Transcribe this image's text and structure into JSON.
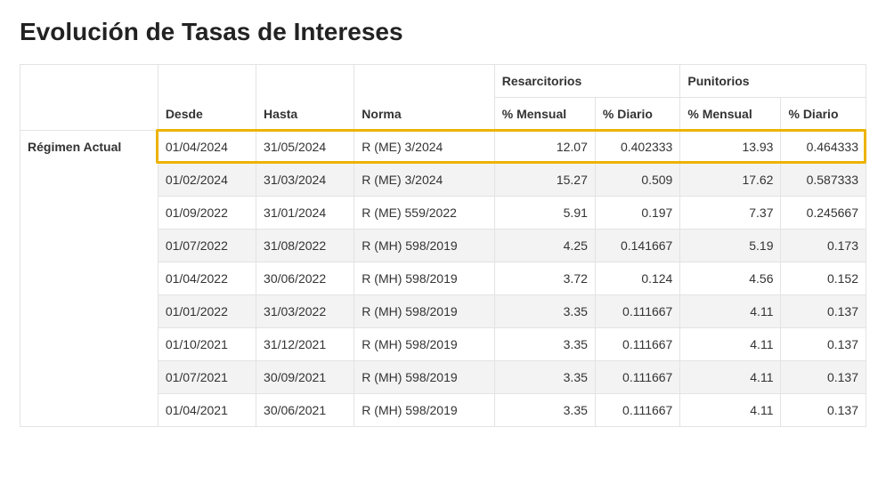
{
  "title": "Evolución de Tasas de Intereses",
  "headers": {
    "desde": "Desde",
    "hasta": "Hasta",
    "norma": "Norma",
    "resarcitorios": "Resarcitorios",
    "punitorios": "Punitorios",
    "pct_mensual": "% Mensual",
    "pct_diario": "% Diario"
  },
  "regimen_label": "Régimen Actual",
  "highlight_row_index": 0,
  "highlight_color": "#edb300",
  "stripe_color": "#f3f3f3",
  "border_color": "#e3e3e3",
  "rows": [
    {
      "desde": "01/04/2024",
      "hasta": "31/05/2024",
      "norma": "R (ME) 3/2024",
      "res_mensual": "12.07",
      "res_diario": "0.402333",
      "pun_mensual": "13.93",
      "pun_diario": "0.464333"
    },
    {
      "desde": "01/02/2024",
      "hasta": "31/03/2024",
      "norma": "R (ME) 3/2024",
      "res_mensual": "15.27",
      "res_diario": "0.509",
      "pun_mensual": "17.62",
      "pun_diario": "0.587333"
    },
    {
      "desde": "01/09/2022",
      "hasta": "31/01/2024",
      "norma": "R (ME) 559/2022",
      "res_mensual": "5.91",
      "res_diario": "0.197",
      "pun_mensual": "7.37",
      "pun_diario": "0.245667"
    },
    {
      "desde": "01/07/2022",
      "hasta": "31/08/2022",
      "norma": "R (MH) 598/2019",
      "res_mensual": "4.25",
      "res_diario": "0.141667",
      "pun_mensual": "5.19",
      "pun_diario": "0.173"
    },
    {
      "desde": "01/04/2022",
      "hasta": "30/06/2022",
      "norma": "R (MH) 598/2019",
      "res_mensual": "3.72",
      "res_diario": "0.124",
      "pun_mensual": "4.56",
      "pun_diario": "0.152"
    },
    {
      "desde": "01/01/2022",
      "hasta": "31/03/2022",
      "norma": "R (MH) 598/2019",
      "res_mensual": "3.35",
      "res_diario": "0.111667",
      "pun_mensual": "4.11",
      "pun_diario": "0.137"
    },
    {
      "desde": "01/10/2021",
      "hasta": "31/12/2021",
      "norma": "R (MH) 598/2019",
      "res_mensual": "3.35",
      "res_diario": "0.111667",
      "pun_mensual": "4.11",
      "pun_diario": "0.137"
    },
    {
      "desde": "01/07/2021",
      "hasta": "30/09/2021",
      "norma": "R (MH) 598/2019",
      "res_mensual": "3.35",
      "res_diario": "0.111667",
      "pun_mensual": "4.11",
      "pun_diario": "0.137"
    },
    {
      "desde": "01/04/2021",
      "hasta": "30/06/2021",
      "norma": "R (MH) 598/2019",
      "res_mensual": "3.35",
      "res_diario": "0.111667",
      "pun_mensual": "4.11",
      "pun_diario": "0.137"
    }
  ]
}
